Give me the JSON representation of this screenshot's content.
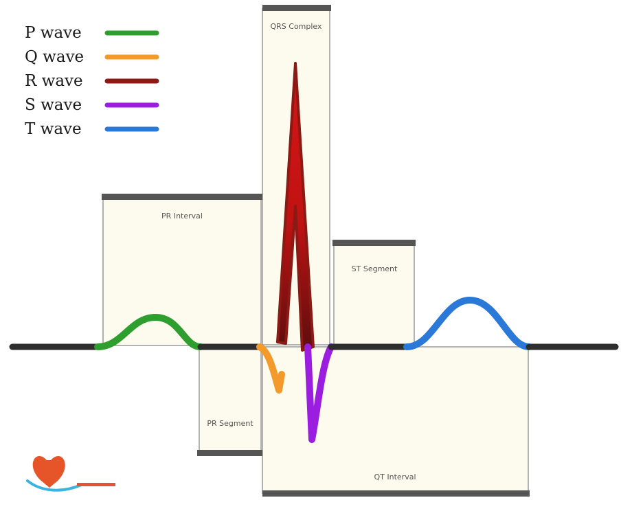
{
  "legend": [
    {
      "label": "P wave",
      "color": "#2e9e2e"
    },
    {
      "label": "Q wave",
      "color": "#f39a2a"
    },
    {
      "label": "R wave",
      "color": "#8b1a14"
    },
    {
      "label": "S wave",
      "color": "#9b1ee0"
    },
    {
      "label": "T wave",
      "color": "#2a78d8"
    }
  ],
  "intervals": {
    "qrs": "QRS Complex",
    "pr": "PR Interval",
    "st": "ST Segment",
    "pr_segment": "PR Segment",
    "qt": "QT Interval"
  },
  "colors": {
    "baseline": "#2e2e2e",
    "box_fill": "#fdfbee",
    "box_stroke": "#9a9a9a",
    "bar": "#555555",
    "r_wave_top": "#d21010",
    "r_wave_dark": "#6b0f0f"
  },
  "logo": {
    "icon": "heart-logo-icon"
  }
}
